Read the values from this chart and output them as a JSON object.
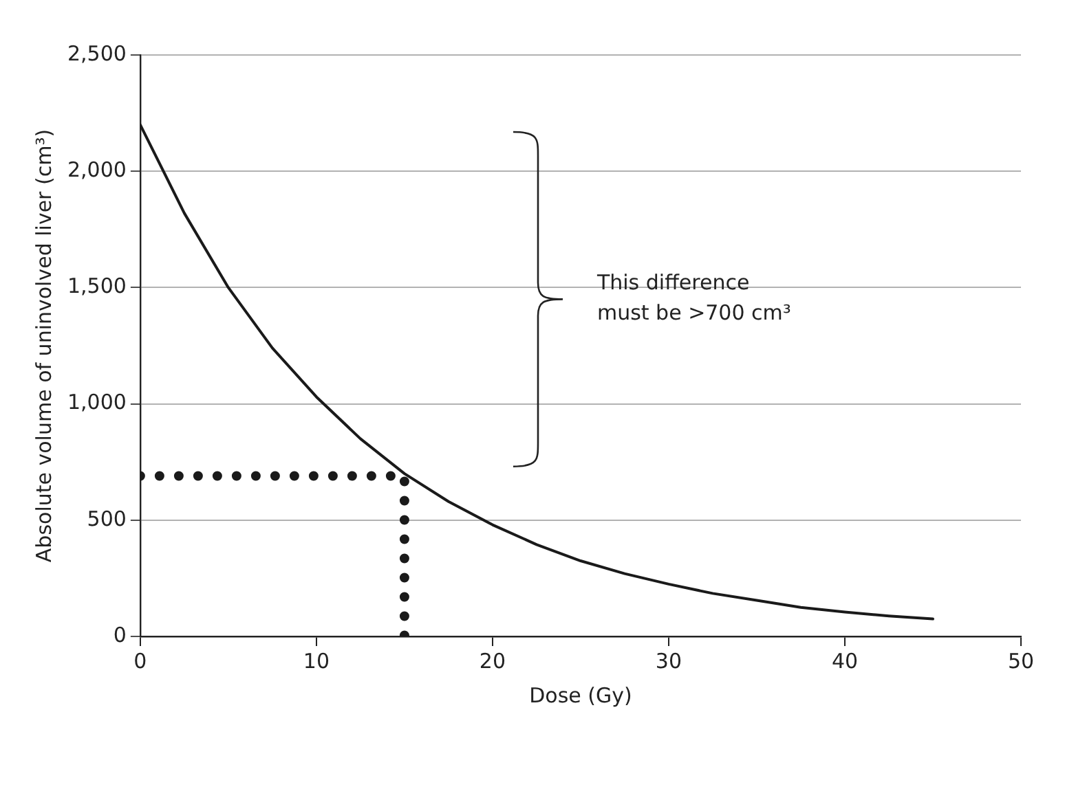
{
  "chart_data": {
    "type": "line",
    "xlabel": "Dose (Gy)",
    "ylabel": "Absolute volume of uninvolved liver (cm³)",
    "xlim": [
      0,
      50
    ],
    "xticks": [
      0,
      10,
      20,
      30,
      40,
      50
    ],
    "ylim": [
      0,
      2500
    ],
    "yticks": [
      0,
      {
        "value": 500,
        "label": "500"
      },
      {
        "value": 1000,
        "label": "1,000"
      },
      {
        "value": 1500,
        "label": "1,500"
      },
      {
        "value": 2000,
        "label": "2,000"
      },
      {
        "value": 2500,
        "label": "2,500"
      }
    ],
    "grid": "y",
    "legend": false,
    "marker": "none",
    "series": [
      {
        "color": "#1a1a1a",
        "line_style": "solid",
        "x": [
          0,
          2.5,
          5,
          7.5,
          10,
          12.5,
          15,
          17.5,
          20,
          22.5,
          25,
          27.5,
          30,
          32.5,
          35,
          37.5,
          40,
          42.5,
          45
        ],
        "values": [
          2200,
          1820,
          1500,
          1240,
          1030,
          850,
          700,
          580,
          480,
          395,
          325,
          270,
          225,
          185,
          155,
          125,
          105,
          88,
          75
        ]
      },
      {
        "color": "#1a1a1a",
        "line_style": "dotted",
        "x": [
          0,
          15,
          15
        ],
        "values": [
          690,
          690,
          0
        ]
      }
    ],
    "annotations": [
      "This difference must be >700 cm³"
    ]
  }
}
